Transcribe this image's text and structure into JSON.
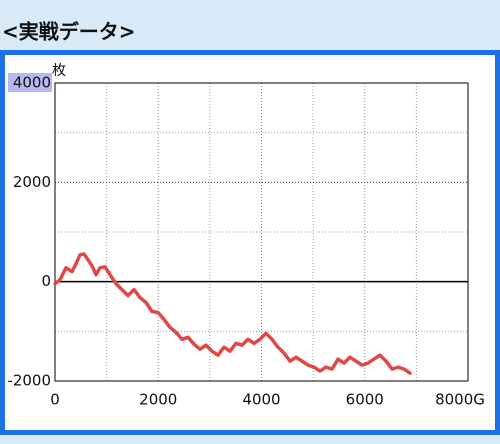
{
  "header": {
    "title": "<実戦データ>"
  },
  "chart_data": {
    "type": "line",
    "ylabel": "枚",
    "x": [
      0,
      97,
      213,
      329,
      407,
      484,
      562,
      639,
      717,
      794,
      872,
      969,
      1065,
      1182,
      1298,
      1414,
      1530,
      1646,
      1763,
      1879,
      1995,
      2111,
      2228,
      2344,
      2460,
      2576,
      2692,
      2809,
      2925,
      3041,
      3157,
      3274,
      3390,
      3506,
      3622,
      3738,
      3854,
      3971,
      4087,
      4203,
      4320,
      4436,
      4552,
      4668,
      4784,
      4901,
      5017,
      5133,
      5249,
      5366,
      5482,
      5598,
      5714,
      5830,
      5947,
      6063,
      6179,
      6295,
      6412,
      6528,
      6644,
      6760,
      6877
    ],
    "values": [
      -40,
      40,
      280,
      200,
      360,
      540,
      560,
      440,
      320,
      140,
      280,
      300,
      140,
      -40,
      -160,
      -280,
      -160,
      -320,
      -420,
      -600,
      -620,
      -760,
      -920,
      -1020,
      -1160,
      -1120,
      -1260,
      -1360,
      -1280,
      -1400,
      -1480,
      -1320,
      -1400,
      -1240,
      -1280,
      -1160,
      -1240,
      -1160,
      -1040,
      -1160,
      -1320,
      -1440,
      -1600,
      -1520,
      -1600,
      -1680,
      -1720,
      -1800,
      -1720,
      -1760,
      -1560,
      -1640,
      -1520,
      -1600,
      -1680,
      -1640,
      -1560,
      -1480,
      -1600,
      -1760,
      -1720,
      -1760,
      -1840
    ],
    "color": "#e04848",
    "xlim": [
      0,
      8000
    ],
    "ylim": [
      -2000,
      4000
    ],
    "xticks": [
      0,
      2000,
      4000,
      6000,
      {
        "value": 8000,
        "label": "8000G"
      }
    ],
    "yticks": [
      -2000,
      0,
      2000,
      4000
    ],
    "minor_xticks": [
      1000,
      3000,
      5000,
      7000
    ],
    "minor_yticks": [
      -1000,
      1000,
      3000
    ],
    "grid": true,
    "zero_line": true
  }
}
